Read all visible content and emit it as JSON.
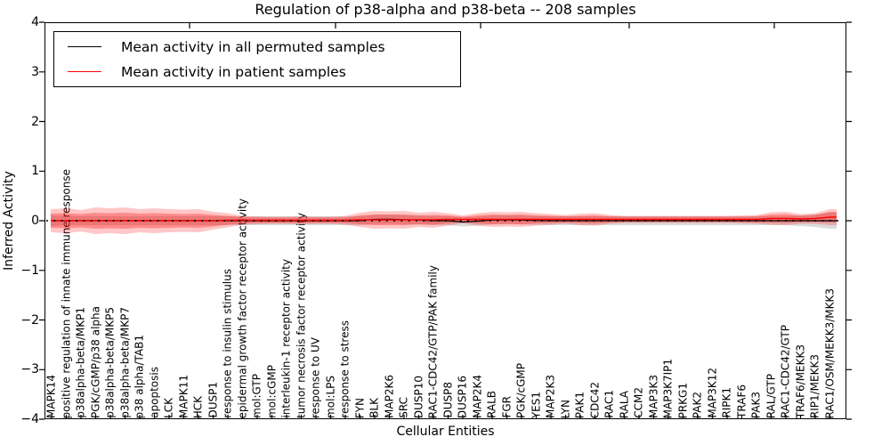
{
  "chart_data": {
    "type": "line",
    "title": "Regulation of p38-alpha and p38-beta -- 208 samples",
    "xlabel": "Cellular Entities",
    "ylabel": "Inferred Activity",
    "ylim": [
      -4,
      4
    ],
    "yticks": [
      4,
      3,
      2,
      1,
      0,
      -1,
      -2,
      -3,
      -4
    ],
    "grid": false,
    "legend_position": "upper left",
    "zero_line": {
      "style": "dotted",
      "color": "#000000",
      "y": 0
    },
    "categories": [
      "MAPK14",
      "positive regulation of innate immune response",
      "p38alpha-beta/MKP1",
      "PGK/cGMP/p38 alpha",
      "p38alpha-beta/MKP5",
      "p38alpha-beta/MKP7",
      "p38 alpha/TAB1",
      "apoptosis",
      "LCK",
      "MAPK11",
      "HCK",
      "DUSP1",
      "response to insulin stimulus",
      "epidermal growth factor receptor activity",
      "mol:GTP",
      "mol:cGMP",
      "interleukin-1 receptor activity",
      "tumor necrosis factor receptor activity",
      "response to UV",
      "mol:LPS",
      "response to stress",
      "FYN",
      "BLK",
      "MAP2K6",
      "SRC",
      "DUSP10",
      "RAC1-CDC42/GTP/PAK family",
      "DUSP8",
      "DUSP16",
      "MAP2K4",
      "RALB",
      "FGR",
      "PGK/cGMP",
      "YES1",
      "MAP2K3",
      "LYN",
      "PAK1",
      "CDC42",
      "RAC1",
      "RALA",
      "CCM2",
      "MAP3K3",
      "MAP3K7IP1",
      "PRKG1",
      "PAK2",
      "MAP3K12",
      "RIPK1",
      "TRAF6",
      "PAK3",
      "RAL/GTP",
      "RAC1-CDC42/GTP",
      "TRAF6/MEKK3",
      "RIP1/MEKK3",
      "RAC1/OSM/MEKK3/MKK3"
    ],
    "series": [
      {
        "name": "Mean activity in all permuted samples",
        "color": "#000000",
        "values": [
          0,
          0,
          0,
          0,
          0,
          0,
          0,
          0,
          0,
          0,
          0,
          0,
          0,
          0,
          0,
          0,
          0,
          0,
          0,
          0,
          0,
          0,
          0.027,
          0.031,
          0.022,
          0.013,
          0,
          0,
          -0.027,
          -0.009,
          0.013,
          0.018,
          0.013,
          0.004,
          0,
          0,
          0,
          0,
          0,
          0,
          0,
          0,
          0,
          0,
          0,
          0,
          0,
          0,
          0,
          0,
          0,
          0,
          0,
          0
        ]
      },
      {
        "name": "Mean activity in patient samples",
        "color": "#ff0000",
        "values": [
          0,
          0,
          0,
          0,
          0,
          0,
          0,
          0,
          0,
          0,
          0,
          0,
          0.009,
          0.009,
          0.009,
          0.009,
          0.009,
          0.009,
          0.009,
          0.009,
          0.009,
          0.018,
          0.018,
          0.018,
          0.018,
          0.018,
          0.018,
          0.027,
          0.027,
          0.027,
          0.027,
          0.027,
          0.027,
          0.027,
          0.027,
          0.027,
          0.027,
          0.027,
          0.027,
          0.027,
          0.027,
          0.027,
          0.027,
          0.027,
          0.027,
          0.027,
          0.027,
          0.027,
          0.027,
          0.045,
          0.045,
          0.036,
          0.045,
          0.072
        ]
      }
    ],
    "bands": [
      {
        "name": "permuted-sample-spread",
        "center_series": 0,
        "color": "#999999",
        "opacity": 0.35,
        "half_widths": [
          0.108,
          0.09,
          0.09,
          0.09,
          0.09,
          0.09,
          0.09,
          0.09,
          0.09,
          0.09,
          0.09,
          0.09,
          0.09,
          0.09,
          0.09,
          0.09,
          0.09,
          0.09,
          0.09,
          0.09,
          0.09,
          0.09,
          0.09,
          0.09,
          0.09,
          0.09,
          0.09,
          0.09,
          0.09,
          0.09,
          0.09,
          0.09,
          0.09,
          0.09,
          0.09,
          0.09,
          0.09,
          0.09,
          0.09,
          0.09,
          0.09,
          0.09,
          0.09,
          0.09,
          0.09,
          0.09,
          0.09,
          0.09,
          0.09,
          0.09,
          0.09,
          0.108,
          0.126,
          0.161
        ]
      },
      {
        "name": "patient-spread-outer",
        "center_series": 1,
        "color": "#ff0000",
        "opacity": 0.22,
        "half_widths": [
          0.233,
          0.251,
          0.215,
          0.269,
          0.251,
          0.269,
          0.233,
          0.251,
          0.233,
          0.224,
          0.233,
          0.179,
          0.143,
          0.09,
          0.081,
          0.072,
          0.072,
          0.081,
          0.072,
          0.072,
          0.09,
          0.143,
          0.179,
          0.17,
          0.179,
          0.143,
          0.161,
          0.126,
          0.081,
          0.126,
          0.152,
          0.143,
          0.152,
          0.126,
          0.108,
          0.09,
          0.117,
          0.126,
          0.09,
          0.072,
          0.072,
          0.072,
          0.072,
          0.072,
          0.072,
          0.072,
          0.072,
          0.081,
          0.09,
          0.126,
          0.135,
          0.099,
          0.108,
          0.161
        ]
      },
      {
        "name": "patient-spread-inner",
        "center_series": 1,
        "color": "#ff0000",
        "opacity": 0.3,
        "half_widths": [
          0.143,
          0.152,
          0.135,
          0.161,
          0.152,
          0.161,
          0.143,
          0.152,
          0.143,
          0.135,
          0.143,
          0.117,
          0.09,
          0.063,
          0.054,
          0.054,
          0.054,
          0.054,
          0.054,
          0.054,
          0.054,
          0.09,
          0.108,
          0.108,
          0.108,
          0.09,
          0.099,
          0.081,
          0.054,
          0.081,
          0.099,
          0.09,
          0.099,
          0.081,
          0.072,
          0.063,
          0.072,
          0.081,
          0.063,
          0.054,
          0.054,
          0.054,
          0.054,
          0.054,
          0.054,
          0.054,
          0.054,
          0.054,
          0.063,
          0.081,
          0.09,
          0.063,
          0.072,
          0.108
        ]
      }
    ]
  },
  "legend": {
    "items": [
      {
        "label": "Mean activity in all permuted samples",
        "color": "#000000"
      },
      {
        "label": "Mean activity in patient samples",
        "color": "#ff0000"
      }
    ]
  }
}
